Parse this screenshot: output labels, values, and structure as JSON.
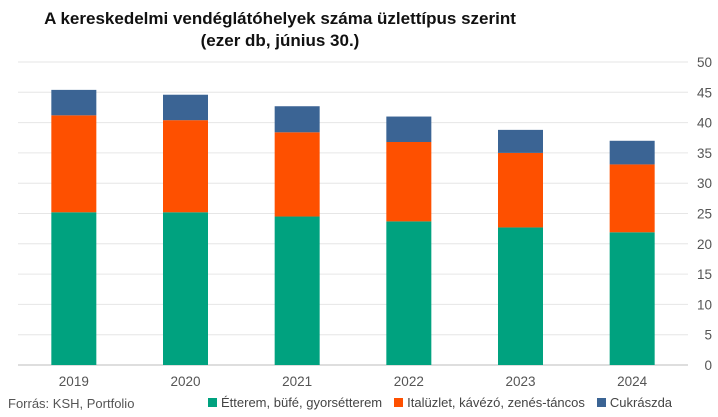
{
  "header": {
    "title_line1": "A kereskedelmi vendéglátóhelyek száma üzlettípus szerint",
    "title_line2": "(ezer db, június 30.)"
  },
  "source": "Forrás: KSH, Portfolio",
  "chart_data": {
    "type": "bar",
    "stacked": true,
    "categories": [
      "2019",
      "2020",
      "2021",
      "2022",
      "2023",
      "2024"
    ],
    "series": [
      {
        "name": "Étterem, büfé, gyorsétterem",
        "color": "#00a27f",
        "values": [
          25.2,
          25.2,
          24.5,
          23.7,
          22.7,
          21.9
        ]
      },
      {
        "name": "Italüzlet, kávézó, zenés-táncos",
        "color": "#fe5000",
        "values": [
          16.0,
          15.2,
          13.9,
          13.1,
          12.3,
          11.2
        ]
      },
      {
        "name": "Cukrászda",
        "color": "#3b6494",
        "values": [
          4.2,
          4.2,
          4.3,
          4.2,
          3.8,
          3.9
        ]
      }
    ],
    "y_ticks": [
      "0",
      "5",
      "10",
      "15",
      "20",
      "25",
      "30",
      "35",
      "40",
      "45",
      "50"
    ],
    "ylim": [
      0,
      50
    ],
    "y_axis_side": "right",
    "grid": true,
    "legend_position": "bottom"
  }
}
